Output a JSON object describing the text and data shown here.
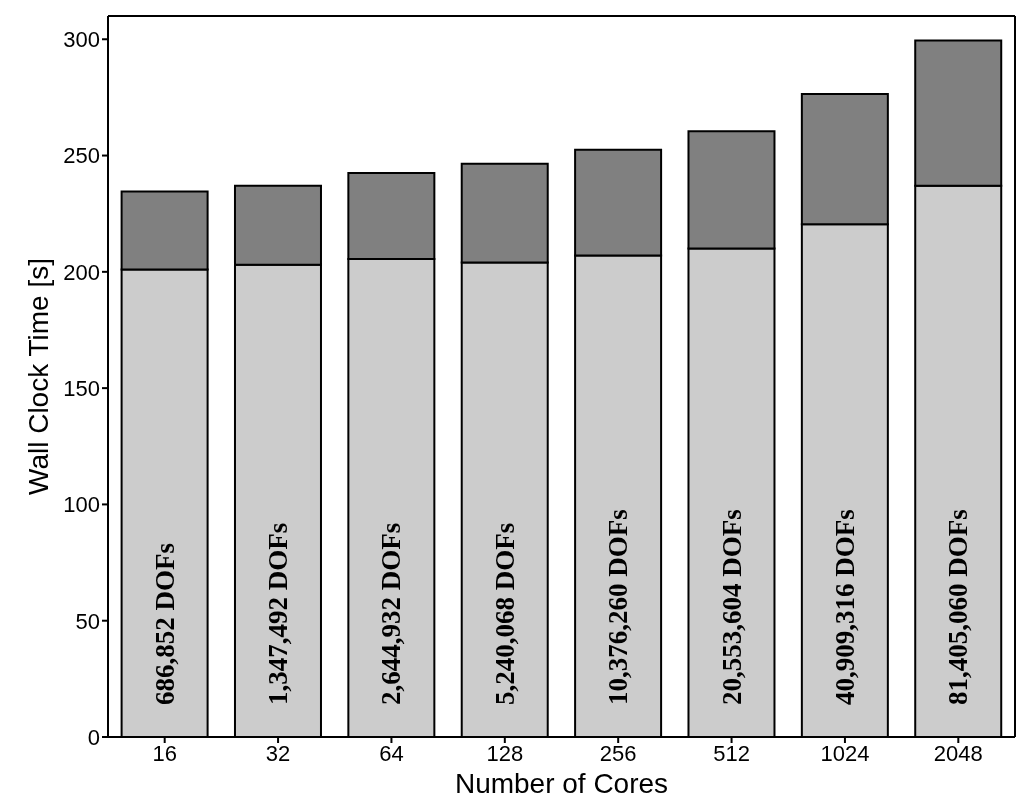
{
  "chart_data": {
    "type": "bar",
    "stacked": true,
    "xlabel": "Number of Cores",
    "ylabel": "Wall Clock Time [s]",
    "categories": [
      "16",
      "32",
      "64",
      "128",
      "256",
      "512",
      "1024",
      "2048"
    ],
    "series": [
      {
        "color": "#cccccc",
        "values": [
          201,
          203,
          205.5,
          204,
          207,
          210,
          220.5,
          237
        ]
      },
      {
        "color": "#808080",
        "values": [
          33.5,
          34,
          37,
          42.5,
          45.5,
          50.5,
          56,
          62.5
        ]
      }
    ],
    "ylim": [
      0,
      310
    ],
    "yticks": [
      0,
      50,
      100,
      150,
      200,
      250,
      300
    ],
    "legend": false,
    "annotations": [
      "686,852 DOFs",
      "1,347,492 DOFs",
      "2,644,932 DOFs",
      "5,240,068 DOFs",
      "10,376,260 DOFs",
      "20,553,604 DOFs",
      "40,909,316 DOFs",
      "81,405,060 DOFs"
    ]
  }
}
